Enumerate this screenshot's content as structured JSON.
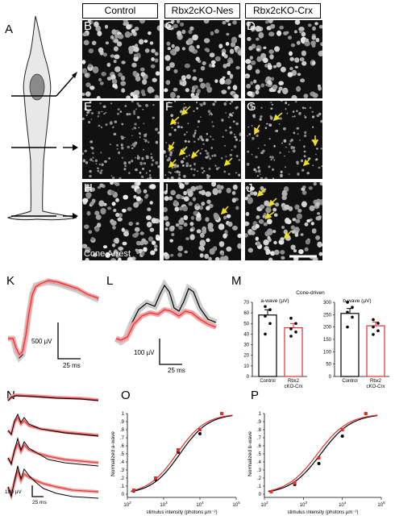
{
  "panels": {
    "A": "A",
    "B": "B",
    "C": "C",
    "D": "D",
    "E": "E",
    "F": "F",
    "G": "G",
    "H": "H",
    "I": "I",
    "J": "J",
    "K": "K",
    "L": "L",
    "M": "M",
    "N": "N",
    "O": "O",
    "P": "P"
  },
  "columns": [
    "Control",
    "Rbx2cKO-Nes",
    "Rbx2cKO-Crx"
  ],
  "stain_label": "Cone Arrest",
  "scalebars": {
    "K_v": "500 µV",
    "K_t": "25 ms",
    "L_v": "100 µV",
    "L_t": "25 ms",
    "N_v": "100 µV",
    "N_t": "25 ms"
  },
  "colors": {
    "control": "#000000",
    "mutant": "#e03030",
    "arrow": "#f0e020"
  },
  "chart_data": [
    {
      "panel": "M-left",
      "type": "bar",
      "title": "Cone-driven",
      "subtitle": "a-wave (µV)",
      "categories": [
        "Control",
        "Rbx2 cKO-Crx"
      ],
      "values": [
        58,
        46
      ],
      "errors": [
        5,
        4
      ],
      "points": [
        [
          66,
          63,
          57,
          50,
          40
        ],
        [
          55,
          50,
          45,
          42,
          38
        ]
      ],
      "ylim": [
        0,
        70
      ],
      "yticks": [
        0,
        10,
        20,
        30,
        40,
        50,
        60,
        70
      ]
    },
    {
      "panel": "M-right",
      "type": "bar",
      "subtitle": "b-wave (µV)",
      "categories": [
        "Control",
        "Rbx2 cKO-Crx"
      ],
      "values": [
        255,
        205
      ],
      "errors": [
        20,
        15
      ],
      "points": [
        [
          300,
          280,
          260,
          240,
          200
        ],
        [
          230,
          215,
          200,
          185,
          170
        ]
      ],
      "ylim": [
        0,
        300
      ],
      "yticks": [
        0,
        50,
        100,
        150,
        200,
        250,
        300
      ]
    },
    {
      "panel": "O",
      "type": "line",
      "ylabel": "Normalized a-wave",
      "xlabel": "stimulus intensity (photons µm⁻²)",
      "xscale": "log",
      "xlim_exp": [
        2,
        5
      ],
      "ylim": [
        0,
        1
      ],
      "yticks": [
        "0",
        ".1",
        ".2",
        ".3",
        ".4",
        ".5",
        ".6",
        ".7",
        ".8",
        ".9",
        "1"
      ],
      "series": [
        {
          "x": [
            150,
            600,
            2500,
            10000,
            40000
          ],
          "y": [
            0.04,
            0.18,
            0.52,
            0.75,
            1.0
          ]
        },
        {
          "x": [
            150,
            600,
            2500,
            10000,
            40000
          ],
          "y": [
            0.05,
            0.2,
            0.55,
            0.8,
            1.0
          ]
        }
      ]
    },
    {
      "panel": "P",
      "type": "line",
      "ylabel": "Normalized b-wave",
      "xlabel": "stimulus intensity (photons µm⁻²)",
      "xscale": "log",
      "xlim_exp": [
        2,
        5
      ],
      "ylim": [
        0,
        1
      ],
      "yticks": [
        "0",
        ".1",
        ".2",
        ".3",
        ".4",
        ".5",
        ".6",
        ".7",
        ".8",
        ".9",
        "1"
      ],
      "series": [
        {
          "x": [
            150,
            600,
            2500,
            10000,
            40000
          ],
          "y": [
            0.03,
            0.12,
            0.38,
            0.72,
            1.0
          ]
        },
        {
          "x": [
            150,
            600,
            2500,
            10000,
            40000
          ],
          "y": [
            0.03,
            0.14,
            0.45,
            0.8,
            1.0
          ]
        }
      ]
    }
  ]
}
